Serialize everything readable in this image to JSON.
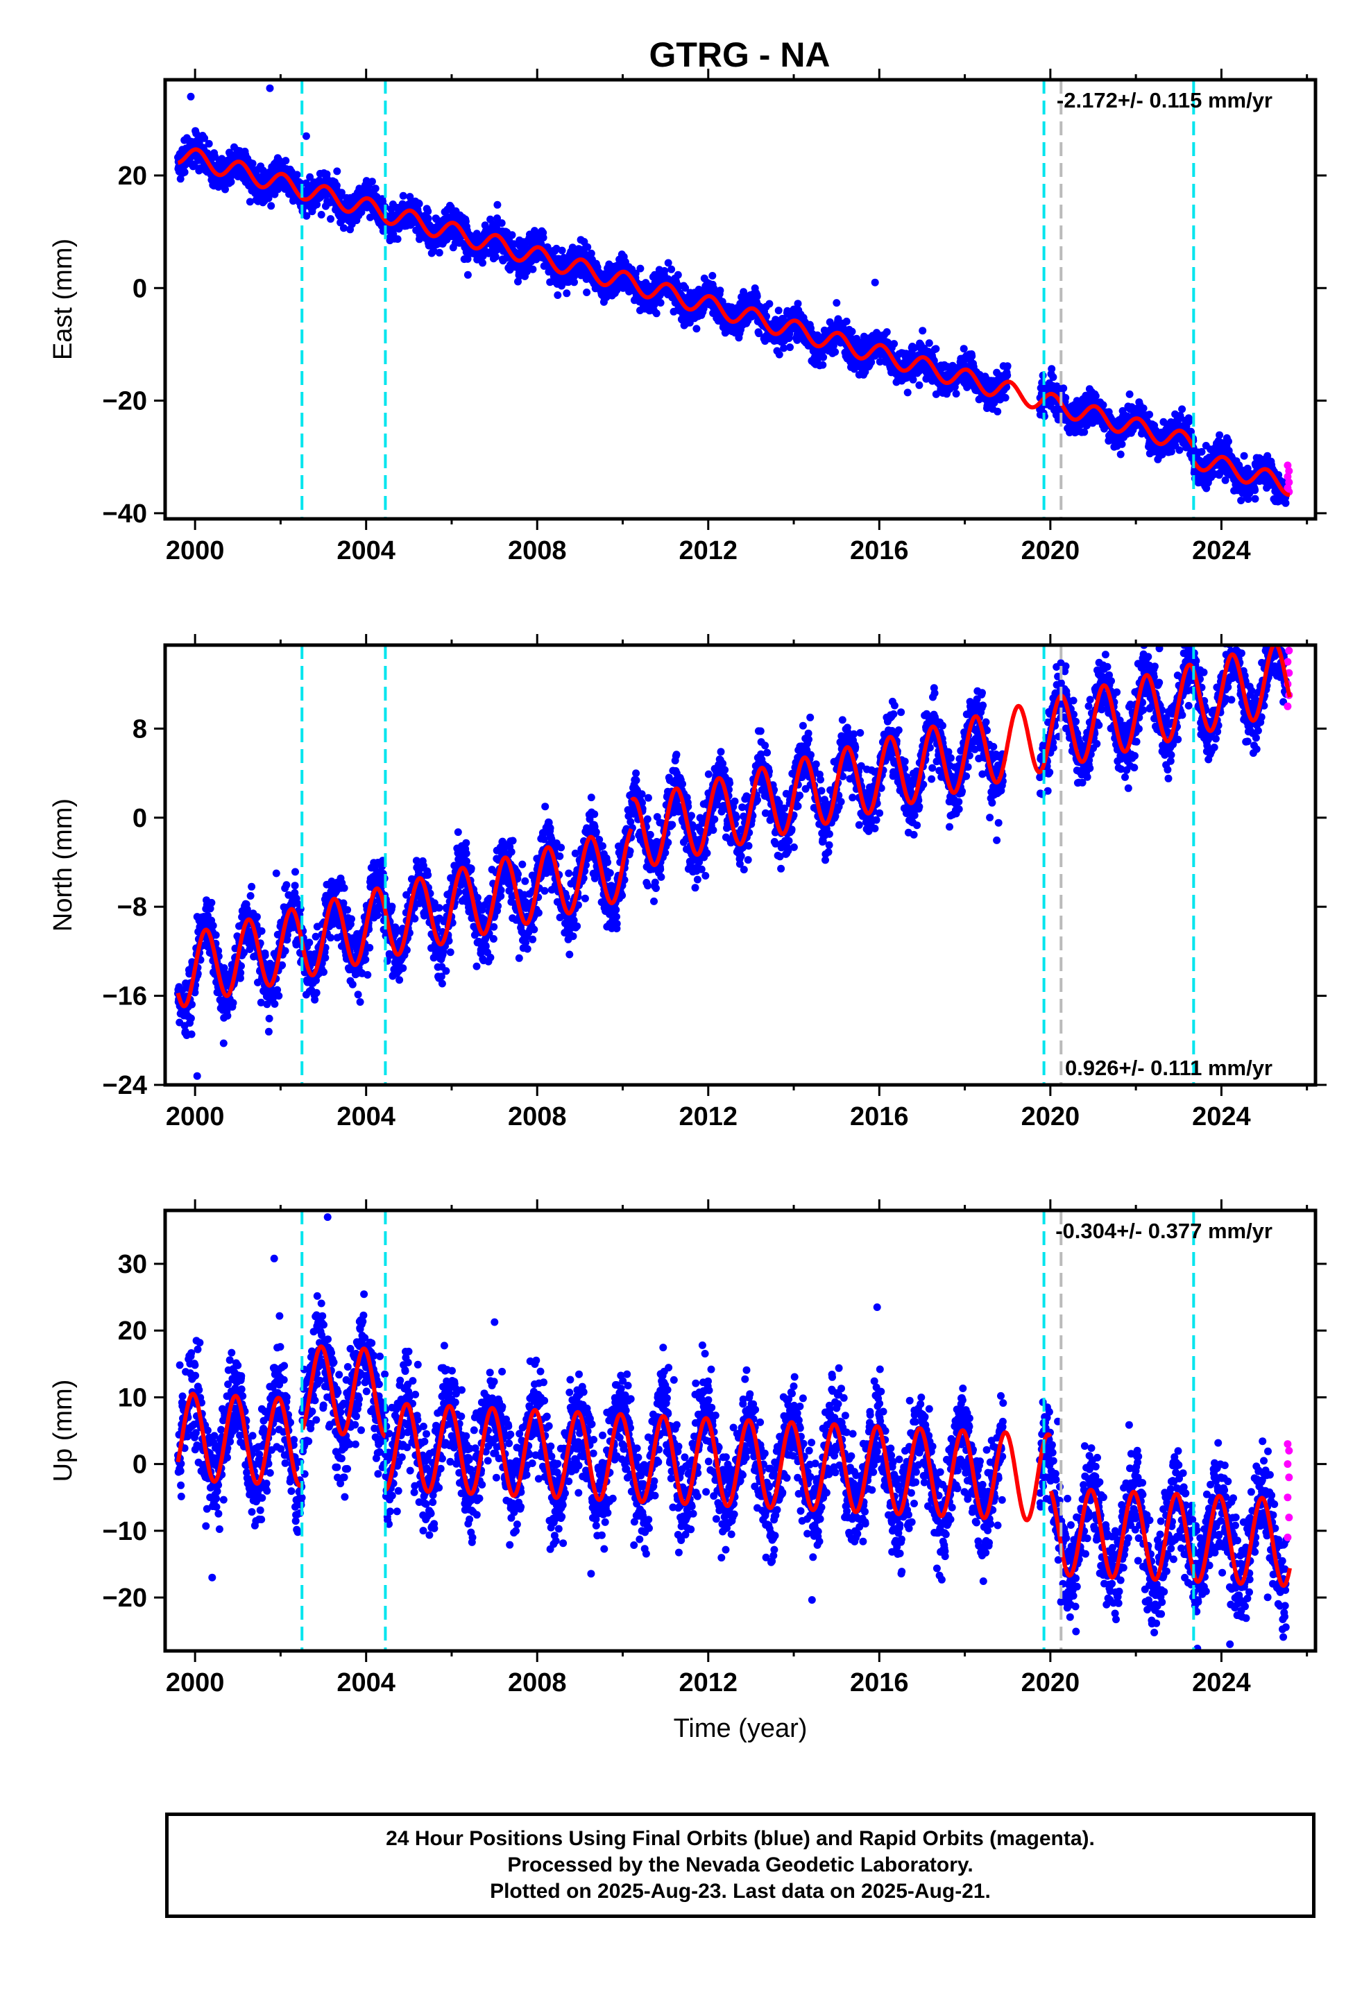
{
  "chart_data": {
    "title": "GTRG - NA",
    "type": "scatter",
    "x_ticks": [
      2000,
      2004,
      2008,
      2012,
      2016,
      2020,
      2024
    ],
    "xlim": [
      1999.3,
      2026.2
    ],
    "xlabel": "Time (year)",
    "equipment_change_epochs": [
      2002.5,
      2004.45,
      2019.85,
      2023.35
    ],
    "other_event_epochs": [
      2020.25
    ],
    "colors": {
      "final_orbits": "#0000ff",
      "rapid_orbits": "#ff00ff",
      "model": "#ff0000",
      "equipment_change": "#00e5ee",
      "other_event": "#bbbbbb"
    },
    "panels": [
      {
        "key": "east",
        "ylabel": "East (mm)",
        "ylim": [
          -41,
          37
        ],
        "yticks": [
          -40,
          -20,
          0,
          20
        ],
        "y_tick_labels": [
          "−40",
          "−20",
          "0",
          "20"
        ],
        "rate_text": "-2.172+/- 0.115 mm/yr",
        "rate_position": "top-right",
        "model": {
          "start": 1999.6,
          "end": 2025.6,
          "slope": -2.172,
          "intercept_at_2000": 23,
          "annual_amplitude": 1.7,
          "phase": 0.2,
          "noise": 1.5
        },
        "offsets": [
          {
            "year": 2023.35,
            "shift": -2.5
          }
        ],
        "outliers": [
          [
            1999.9,
            34
          ],
          [
            2001.75,
            35.5
          ],
          [
            2002.6,
            27
          ],
          [
            2015.9,
            1
          ]
        ],
        "rapid_values": [
          -31.5,
          -32.5,
          -33.5,
          -34.5,
          -35.5,
          -36.2
        ]
      },
      {
        "key": "north",
        "ylabel": "North (mm)",
        "ylim": [
          -24,
          15.5
        ],
        "yticks": [
          -24,
          -16,
          -8,
          0,
          8
        ],
        "y_tick_labels": [
          "−24",
          "−16",
          "−8",
          "0",
          "8"
        ],
        "rate_text": "0.926+/- 0.111 mm/yr",
        "rate_position": "bottom-right",
        "model": {
          "start": 1999.6,
          "end": 2025.6,
          "slope": 0.926,
          "intercept_at_2000": -13.5,
          "annual_amplitude": 3.2,
          "phase": 0.0,
          "noise": 1.4
        },
        "offsets": [
          {
            "year": 2010.2,
            "shift": 2.5
          }
        ],
        "outliers": [
          [
            2000.05,
            -23.2
          ],
          [
            2001.9,
            -5
          ],
          [
            2022.55,
            15.2
          ]
        ],
        "rapid_values": [
          10,
          11,
          12,
          13,
          14,
          15
        ]
      },
      {
        "key": "up",
        "ylabel": "Up (mm)",
        "ylim": [
          -28,
          38
        ],
        "yticks": [
          -20,
          -10,
          0,
          10,
          20,
          30
        ],
        "y_tick_labels": [
          "−20",
          "−10",
          "0",
          "10",
          "20",
          "30"
        ],
        "rate_text": "-0.304+/- 0.377 mm/yr",
        "rate_position": "top-right",
        "model": {
          "start": 1999.6,
          "end": 2025.6,
          "slope": -0.304,
          "intercept_at_2000": 4,
          "annual_amplitude": 6.5,
          "phase": 0.3,
          "noise": 3.8
        },
        "offsets": [
          {
            "year": 2002.5,
            "shift": 8
          },
          {
            "year": 2004.45,
            "shift": -8
          },
          {
            "year": 2020.0,
            "shift": -8
          }
        ],
        "outliers": [
          [
            2003.1,
            37
          ],
          [
            2001.85,
            30.8
          ],
          [
            2015.95,
            23.5
          ],
          [
            2000.4,
            -17
          ],
          [
            2024.2,
            -27
          ]
        ],
        "rapid_values": [
          3,
          2,
          0,
          -2,
          -5,
          -8,
          -11
        ]
      }
    ]
  },
  "footer": {
    "line1": "24 Hour Positions Using Final Orbits (blue) and Rapid Orbits (magenta).",
    "line2": "Processed by the Nevada Geodetic Laboratory.",
    "line3": "Plotted on 2025-Aug-23. Last data on 2025-Aug-21."
  }
}
